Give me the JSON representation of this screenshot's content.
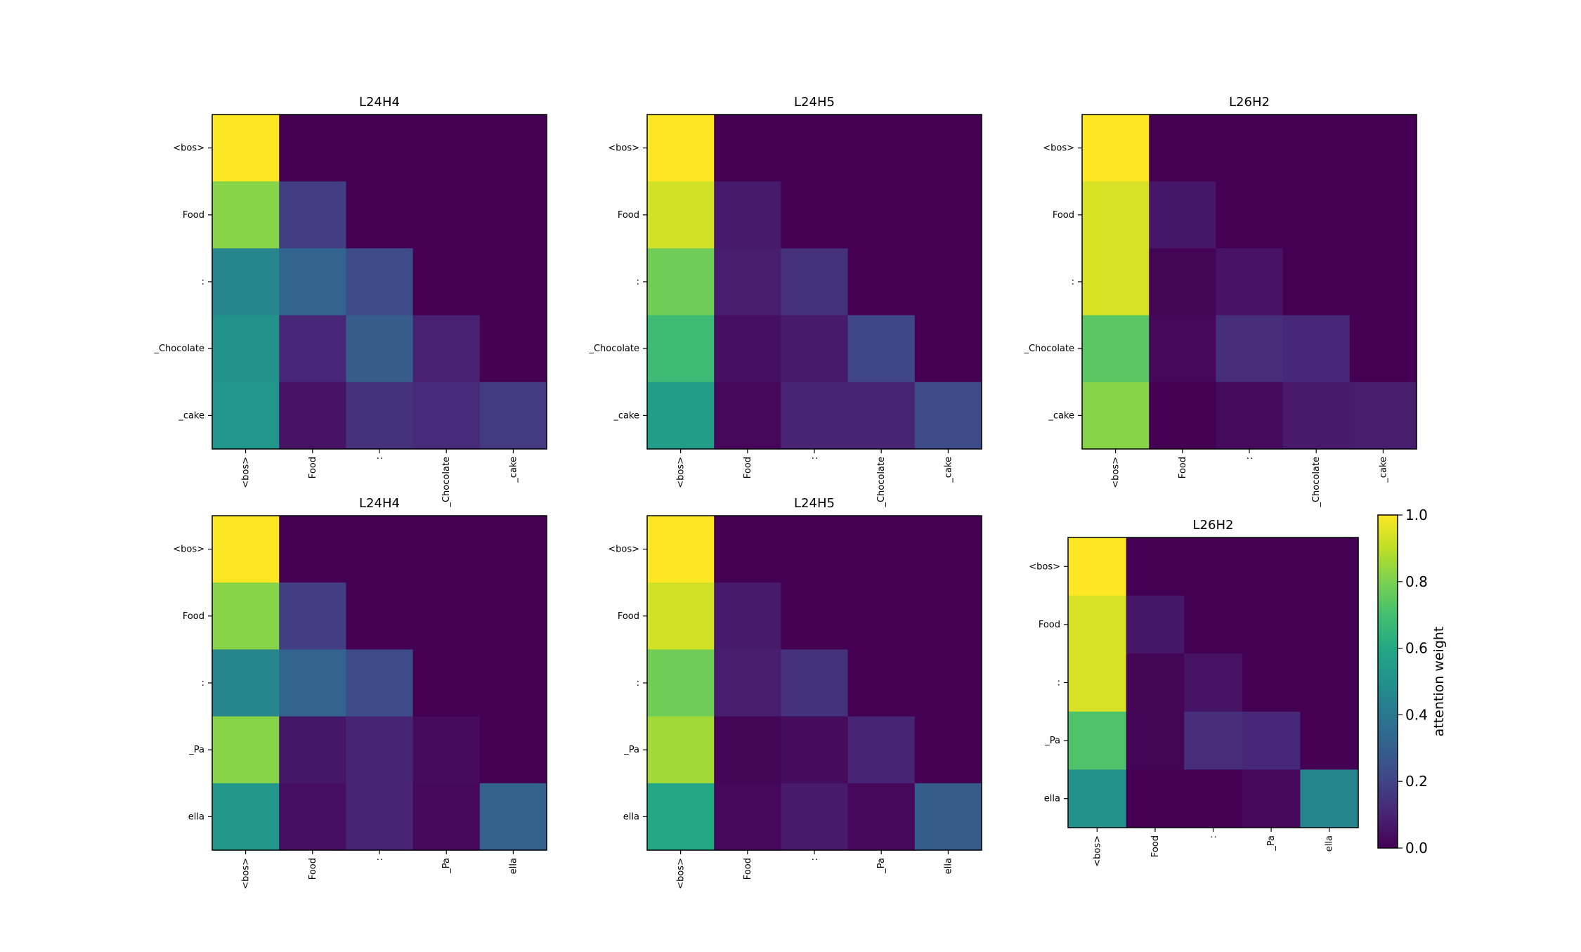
{
  "colorbar": {
    "label": "attention weight",
    "ticks": [
      "0.0",
      "0.2",
      "0.4",
      "0.6",
      "0.8",
      "1.0"
    ],
    "vmin": 0.0,
    "vmax": 1.0,
    "colormap": "viridis"
  },
  "chart_data": [
    {
      "type": "heatmap",
      "title": "L24H4",
      "row_labels": [
        "<bos>",
        "Food",
        ":",
        "_Chocolate",
        "_cake"
      ],
      "col_labels": [
        "<bos>",
        "Food",
        ":",
        "_Chocolate",
        "_cake"
      ],
      "values": [
        [
          1.0,
          0.0,
          0.0,
          0.0,
          0.0
        ],
        [
          0.82,
          0.18,
          0.0,
          0.0,
          0.0
        ],
        [
          0.45,
          0.32,
          0.23,
          0.0,
          0.0
        ],
        [
          0.51,
          0.11,
          0.29,
          0.09,
          0.0
        ],
        [
          0.52,
          0.05,
          0.14,
          0.12,
          0.17
        ]
      ]
    },
    {
      "type": "heatmap",
      "title": "L24H5",
      "row_labels": [
        "<bos>",
        "Food",
        ":",
        "_Chocolate",
        "_cake"
      ],
      "col_labels": [
        "<bos>",
        "Food",
        ":",
        "_Chocolate",
        "_cake"
      ],
      "values": [
        [
          1.0,
          0.0,
          0.0,
          0.0,
          0.0
        ],
        [
          0.93,
          0.07,
          0.0,
          0.0,
          0.0
        ],
        [
          0.78,
          0.08,
          0.14,
          0.0,
          0.0
        ],
        [
          0.68,
          0.04,
          0.07,
          0.21,
          0.0
        ],
        [
          0.55,
          0.02,
          0.1,
          0.1,
          0.23
        ]
      ]
    },
    {
      "type": "heatmap",
      "title": "L26H2",
      "row_labels": [
        "<bos>",
        "Food",
        ":",
        "_Chocolate",
        "_cake"
      ],
      "col_labels": [
        "<bos>",
        "Food",
        ":",
        "_Chocolate",
        "_cake"
      ],
      "values": [
        [
          1.0,
          0.0,
          0.0,
          0.0,
          0.0
        ],
        [
          0.94,
          0.06,
          0.0,
          0.0,
          0.0
        ],
        [
          0.94,
          0.01,
          0.05,
          0.0,
          0.0
        ],
        [
          0.74,
          0.02,
          0.13,
          0.11,
          0.0
        ],
        [
          0.82,
          0.0,
          0.03,
          0.07,
          0.08
        ]
      ]
    },
    {
      "type": "heatmap",
      "title": "L24H4",
      "row_labels": [
        "<bos>",
        "Food",
        ":",
        "_Pa",
        "ella"
      ],
      "col_labels": [
        "<bos>",
        "Food",
        ":",
        "_Pa",
        "ella"
      ],
      "values": [
        [
          1.0,
          0.0,
          0.0,
          0.0,
          0.0
        ],
        [
          0.82,
          0.18,
          0.0,
          0.0,
          0.0
        ],
        [
          0.45,
          0.32,
          0.23,
          0.0,
          0.0
        ],
        [
          0.82,
          0.06,
          0.1,
          0.03,
          0.0
        ],
        [
          0.53,
          0.04,
          0.1,
          0.02,
          0.31
        ]
      ]
    },
    {
      "type": "heatmap",
      "title": "L24H5",
      "row_labels": [
        "<bos>",
        "Food",
        ":",
        "_Pa",
        "ella"
      ],
      "col_labels": [
        "<bos>",
        "Food",
        ":",
        "_Pa",
        "ella"
      ],
      "values": [
        [
          1.0,
          0.0,
          0.0,
          0.0,
          0.0
        ],
        [
          0.93,
          0.07,
          0.0,
          0.0,
          0.0
        ],
        [
          0.78,
          0.08,
          0.14,
          0.0,
          0.0
        ],
        [
          0.86,
          0.01,
          0.03,
          0.1,
          0.0
        ],
        [
          0.6,
          0.02,
          0.07,
          0.02,
          0.29
        ]
      ]
    },
    {
      "type": "heatmap",
      "title": "L26H2",
      "row_labels": [
        "<bos>",
        "Food",
        ":",
        "_Pa",
        "ella"
      ],
      "col_labels": [
        "<bos>",
        "Food",
        ":",
        "_Pa",
        "ella"
      ],
      "values": [
        [
          1.0,
          0.0,
          0.0,
          0.0,
          0.0
        ],
        [
          0.94,
          0.06,
          0.0,
          0.0,
          0.0
        ],
        [
          0.94,
          0.01,
          0.05,
          0.0,
          0.0
        ],
        [
          0.72,
          0.01,
          0.13,
          0.11,
          0.0
        ],
        [
          0.51,
          0.0,
          0.0,
          0.02,
          0.45
        ]
      ]
    }
  ]
}
